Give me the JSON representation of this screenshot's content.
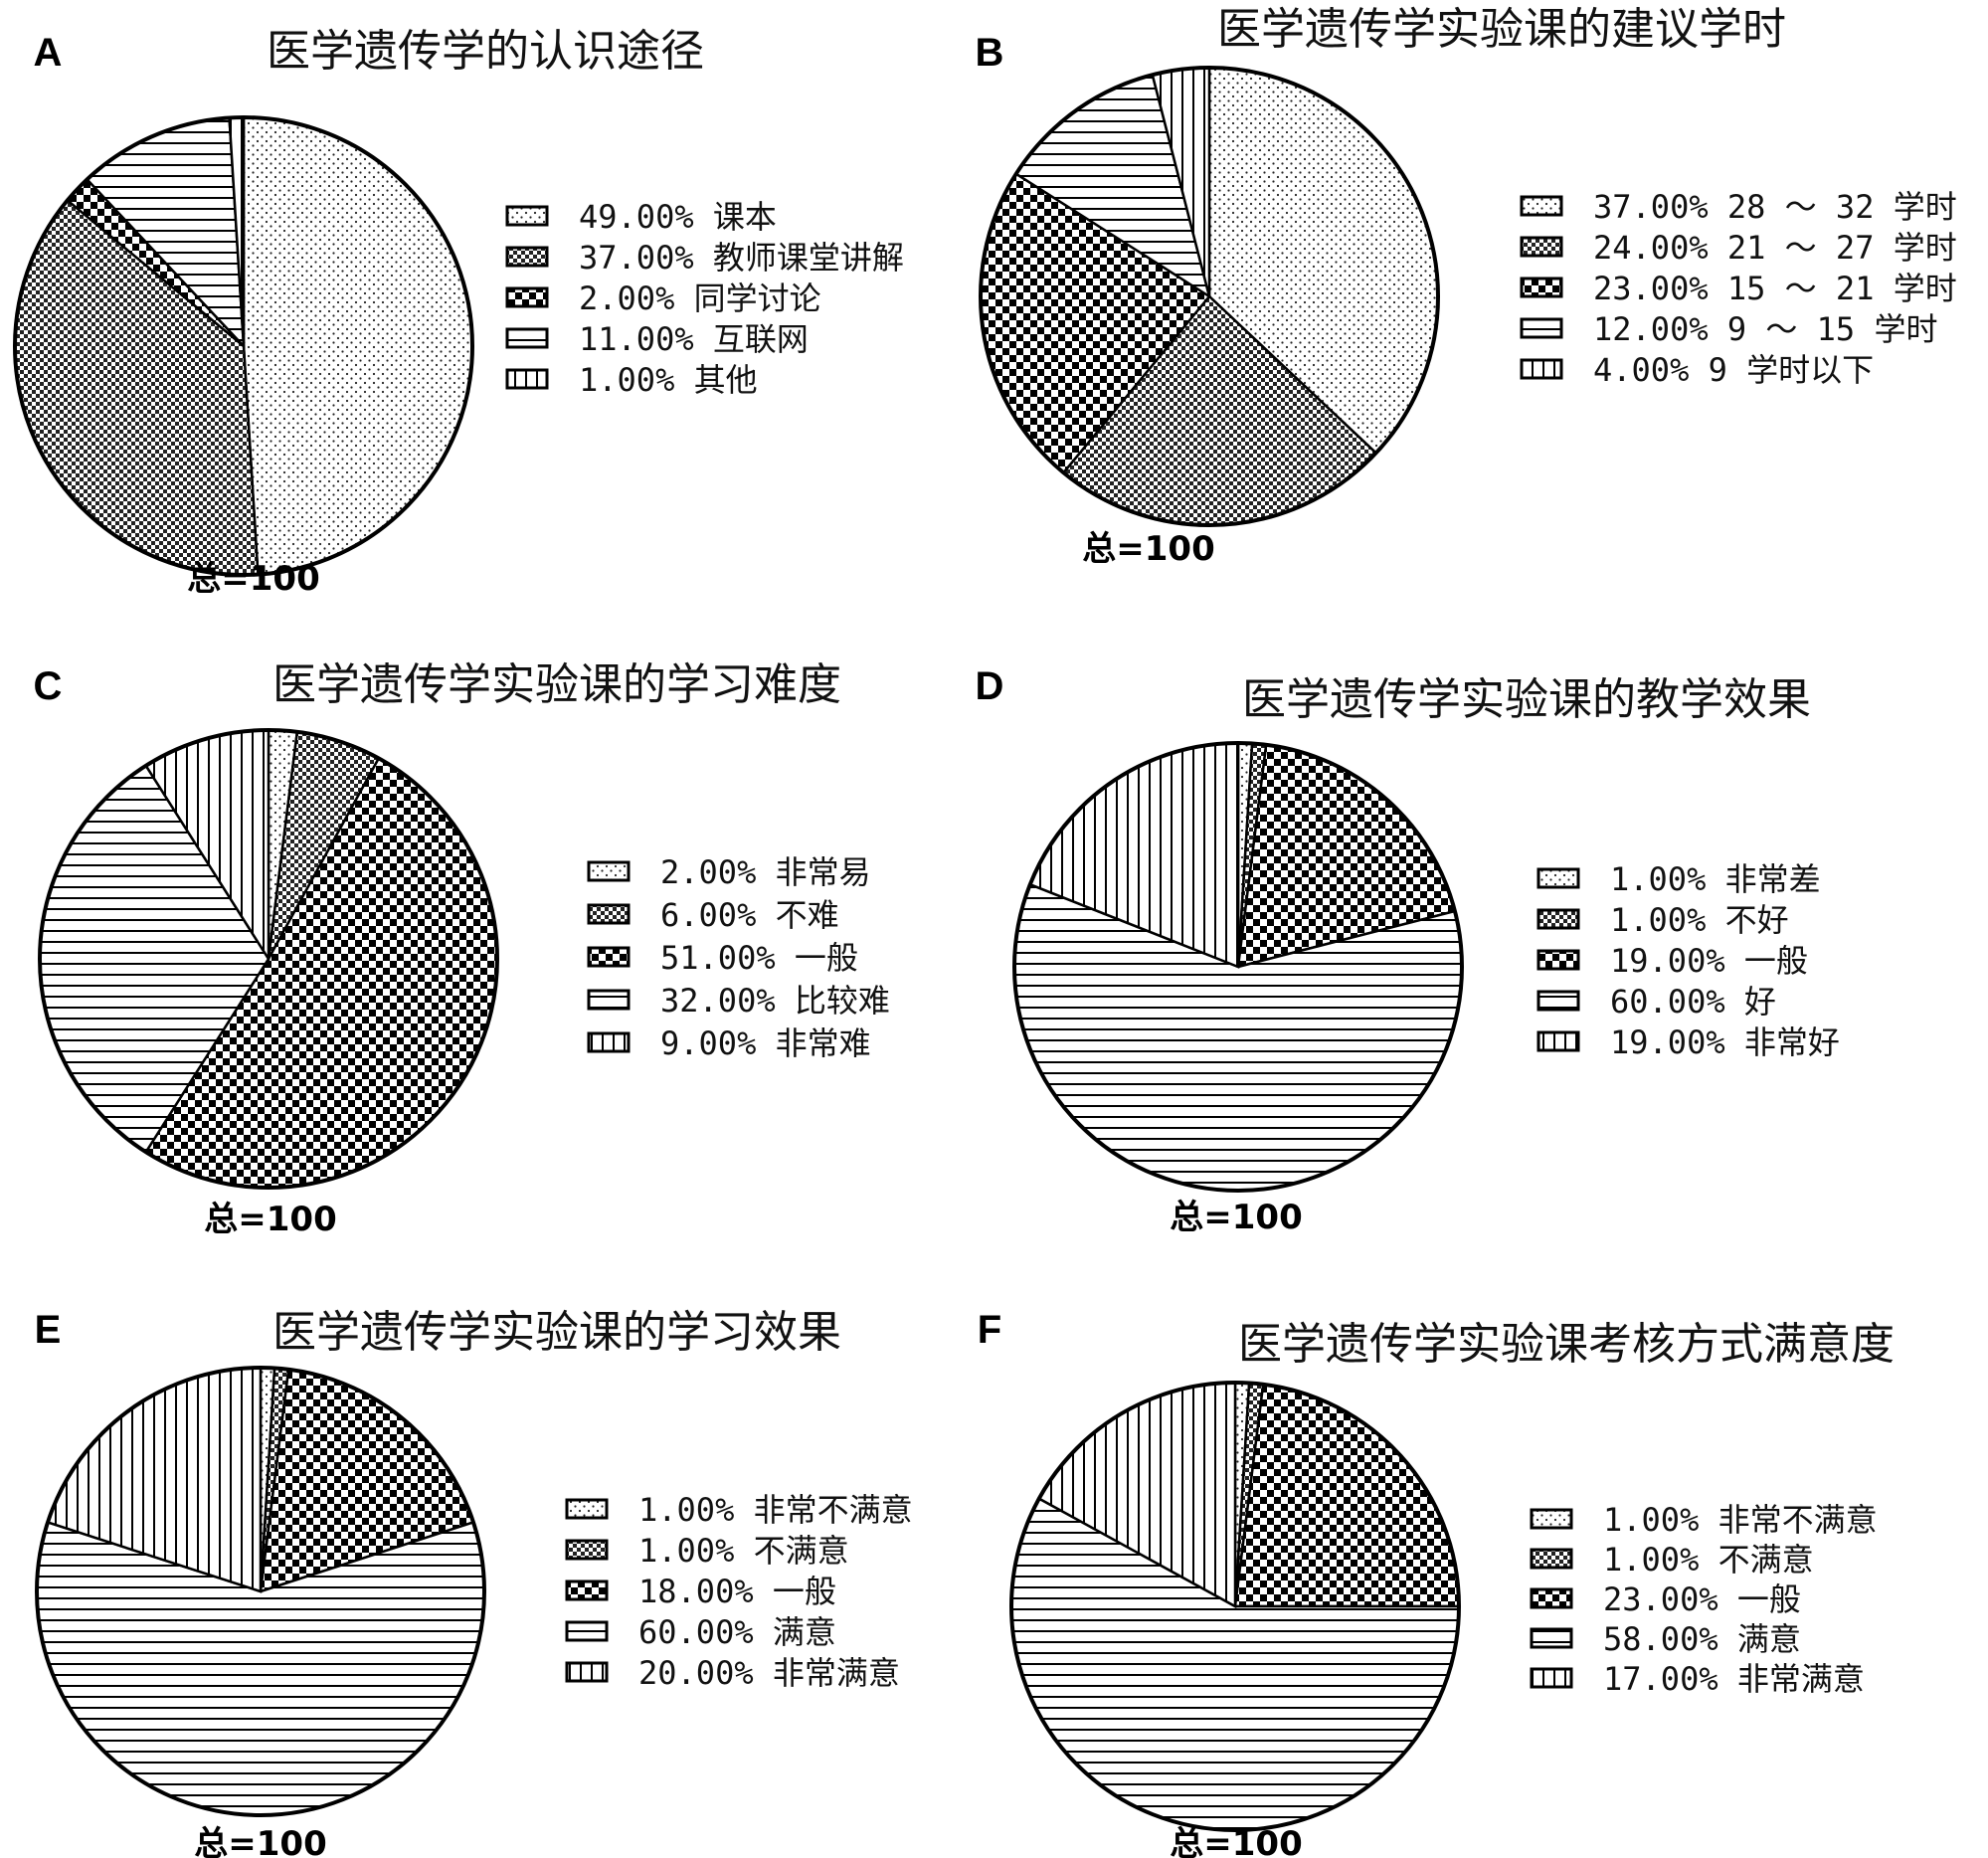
{
  "chart_data": [
    {
      "type": "pie",
      "panel": "A",
      "title": "医学遗传学的认识途径",
      "total_label": "总=100",
      "series": [
        {
          "name": "课本",
          "label": "49.00%  课本",
          "value": 49,
          "pattern": "fine-dots"
        },
        {
          "name": "教师课堂讲解",
          "label": "37.00%  教师课堂讲解",
          "value": 37,
          "pattern": "fine-check"
        },
        {
          "name": "同学讨论",
          "label": "2.00%  同学讨论",
          "value": 2,
          "pattern": "big-check"
        },
        {
          "name": "互联网",
          "label": "11.00%  互联网",
          "value": 11,
          "pattern": "h-lines"
        },
        {
          "name": "其他",
          "label": "1.00%  其他",
          "value": 1,
          "pattern": "v-lines"
        }
      ]
    },
    {
      "type": "pie",
      "panel": "B",
      "title": "医学遗传学实验课的建议学时",
      "total_label": "总=100",
      "series": [
        {
          "name": "28 ～ 32 学时",
          "label": "37.00%  28 ～ 32 学时",
          "value": 37,
          "pattern": "fine-dots"
        },
        {
          "name": "21 ～ 27 学时",
          "label": "24.00%  21 ～ 27 学时",
          "value": 24,
          "pattern": "fine-check"
        },
        {
          "name": "15 ～ 21 学时",
          "label": "23.00%  15 ～ 21 学时",
          "value": 23,
          "pattern": "big-check"
        },
        {
          "name": "9 ～ 15 学时",
          "label": "12.00%  9 ～ 15 学时",
          "value": 12,
          "pattern": "h-lines"
        },
        {
          "name": "9 学时以下",
          "label": "4.00%  9 学时以下",
          "value": 4,
          "pattern": "v-lines"
        }
      ]
    },
    {
      "type": "pie",
      "panel": "C",
      "title": "医学遗传学实验课的学习难度",
      "total_label": "总=100",
      "series": [
        {
          "name": "非常易",
          "label": "2.00%  非常易",
          "value": 2,
          "pattern": "fine-dots"
        },
        {
          "name": "不难",
          "label": "6.00%  不难",
          "value": 6,
          "pattern": "fine-check"
        },
        {
          "name": "一般",
          "label": "51.00%  一般",
          "value": 51,
          "pattern": "big-check"
        },
        {
          "name": "比较难",
          "label": "32.00%  比较难",
          "value": 32,
          "pattern": "h-lines"
        },
        {
          "name": "非常难",
          "label": "9.00%  非常难",
          "value": 9,
          "pattern": "v-lines"
        }
      ]
    },
    {
      "type": "pie",
      "panel": "D",
      "title": "医学遗传学实验课的教学效果",
      "total_label": "总=100",
      "series": [
        {
          "name": "非常差",
          "label": "1.00%  非常差",
          "value": 1,
          "pattern": "fine-dots"
        },
        {
          "name": "不好",
          "label": "1.00%  不好",
          "value": 1,
          "pattern": "fine-check"
        },
        {
          "name": "一般",
          "label": "19.00%  一般",
          "value": 19,
          "pattern": "big-check"
        },
        {
          "name": "好",
          "label": "60.00%  好",
          "value": 60,
          "pattern": "h-lines"
        },
        {
          "name": "非常好",
          "label": "19.00%  非常好",
          "value": 19,
          "pattern": "v-lines"
        }
      ]
    },
    {
      "type": "pie",
      "panel": "E",
      "title": "医学遗传学实验课的学习效果",
      "total_label": "总=100",
      "series": [
        {
          "name": "非常不满意",
          "label": "1.00%  非常不满意",
          "value": 1,
          "pattern": "fine-dots"
        },
        {
          "name": "不满意",
          "label": "1.00%  不满意",
          "value": 1,
          "pattern": "fine-check"
        },
        {
          "name": "一般",
          "label": "18.00%  一般",
          "value": 18,
          "pattern": "big-check"
        },
        {
          "name": "满意",
          "label": "60.00%  满意",
          "value": 60,
          "pattern": "h-lines"
        },
        {
          "name": "非常满意",
          "label": "20.00%  非常满意",
          "value": 20,
          "pattern": "v-lines"
        }
      ]
    },
    {
      "type": "pie",
      "panel": "F",
      "title": "医学遗传学实验课考核方式满意度",
      "total_label": "总=100",
      "series": [
        {
          "name": "非常不满意",
          "label": "1.00%  非常不满意",
          "value": 1,
          "pattern": "fine-dots"
        },
        {
          "name": "不满意",
          "label": "1.00%  不满意",
          "value": 1,
          "pattern": "fine-check"
        },
        {
          "name": "一般",
          "label": "23.00%  一般",
          "value": 23,
          "pattern": "big-check"
        },
        {
          "name": "满意",
          "label": "58.00%  满意",
          "value": 58,
          "pattern": "h-lines"
        },
        {
          "name": "非常满意",
          "label": "17.00%  非常满意",
          "value": 17,
          "pattern": "v-lines"
        }
      ]
    }
  ]
}
